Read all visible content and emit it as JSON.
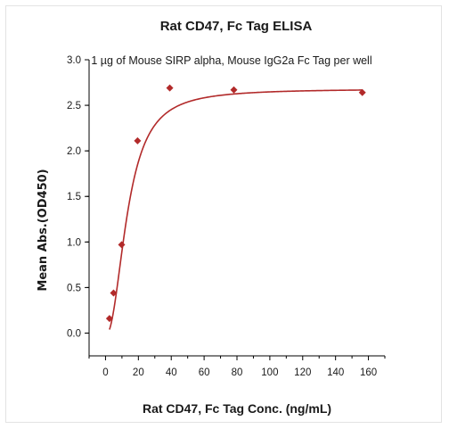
{
  "chart_data": {
    "type": "scatter",
    "title": "Rat CD47, Fc Tag ELISA",
    "subtitle": "1 µg of Mouse SIRP alpha, Mouse IgG2a Fc Tag per well",
    "xlabel": "Rat CD47, Fc Tag Conc. (ng/mL)",
    "ylabel": "Mean Abs.(OD450)",
    "xlim": [
      -10,
      170
    ],
    "ylim": [
      -0.25,
      3.0
    ],
    "x_ticks": [
      "0",
      "20",
      "40",
      "60",
      "80",
      "100",
      "120",
      "140",
      "160"
    ],
    "y_ticks": [
      "0.0",
      "0.5",
      "1.0",
      "1.5",
      "2.0",
      "2.5",
      "3.0"
    ],
    "grid": false,
    "legend": "none",
    "series": [
      {
        "points": [
          {
            "x": 2.4,
            "y": 0.16
          },
          {
            "x": 4.9,
            "y": 0.44
          },
          {
            "x": 9.8,
            "y": 0.97
          },
          {
            "x": 19.5,
            "y": 2.11
          },
          {
            "x": 39.1,
            "y": 2.69
          },
          {
            "x": 78.1,
            "y": 2.67
          },
          {
            "x": 156.3,
            "y": 2.64
          }
        ],
        "fit": "four-parameter logistic",
        "color": "#b22a2a"
      }
    ]
  }
}
